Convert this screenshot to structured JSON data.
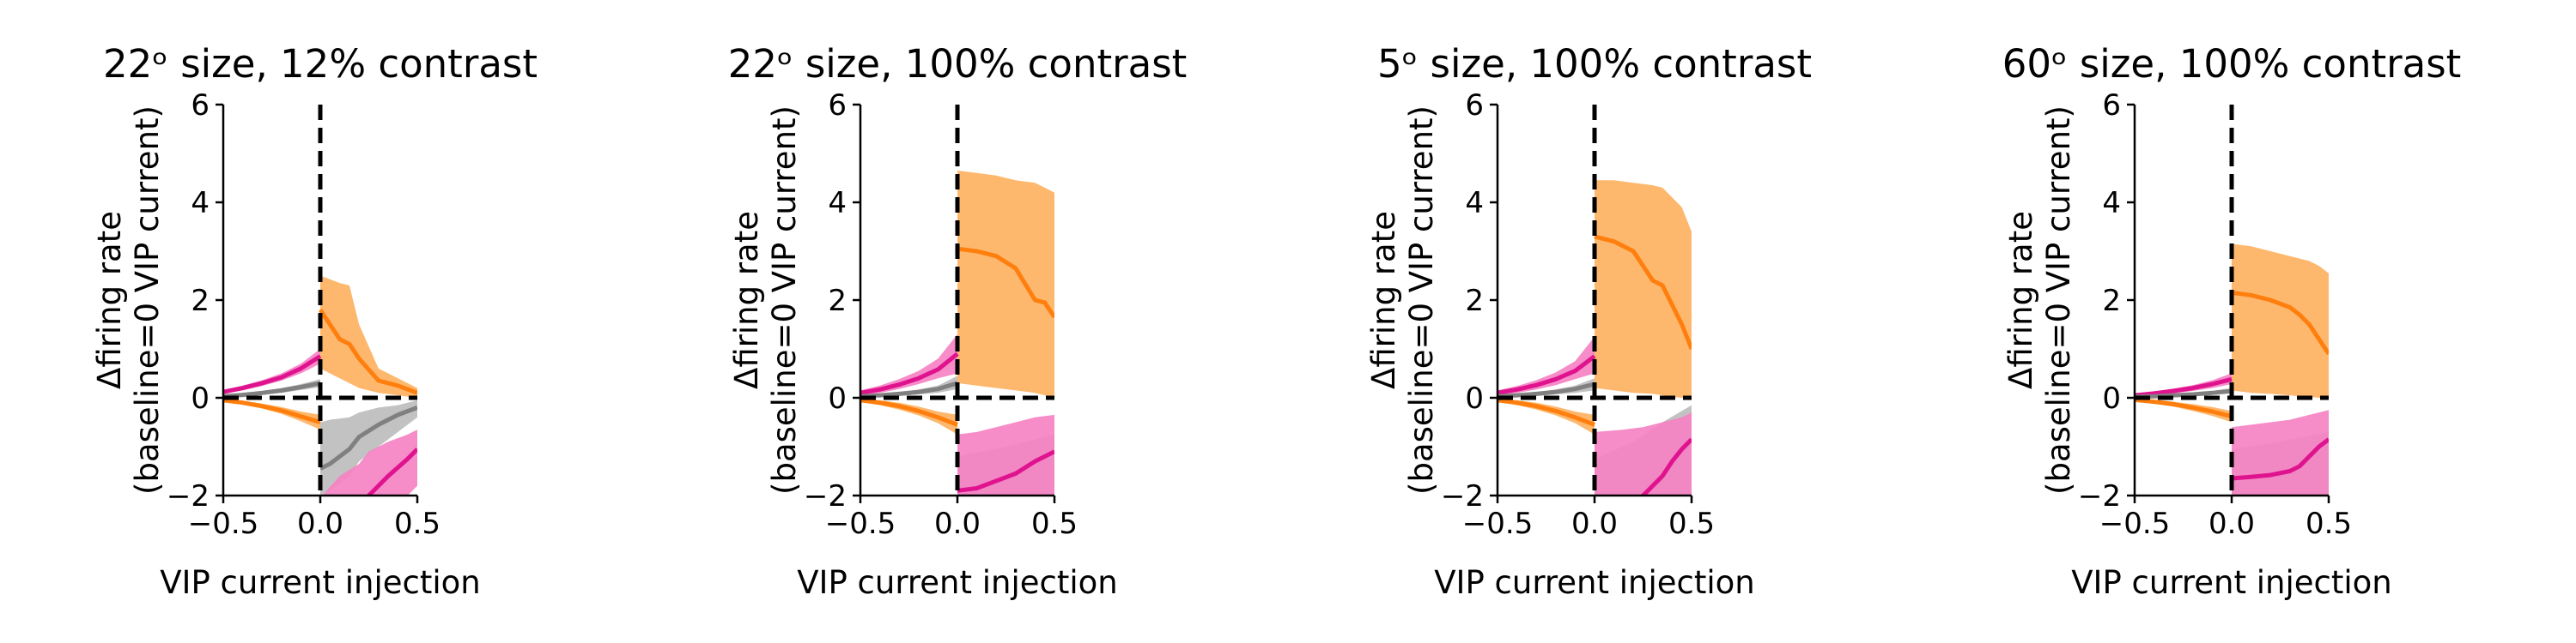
{
  "colors": {
    "orange": "#ff7f0e",
    "orange_band": "#fdb86e",
    "magenta": "#e0138f",
    "magenta_band": "#f582c3",
    "grey": "#808080",
    "grey_band": "#bdbdbd",
    "dashed": "#000000"
  },
  "chart_data": [
    {
      "type": "line",
      "title": "22ᵒ size, 12% contrast",
      "xlabel": "VIP current injection",
      "ylabel_line1": "Δfiring rate",
      "ylabel_line2": "(baseline=0 VIP current)",
      "xlim": [
        -0.5,
        0.5
      ],
      "ylim": [
        -2,
        6
      ],
      "xticks": [
        "−0.5",
        "0.0",
        "0.5"
      ],
      "yticks": [
        "−2",
        "0",
        "2",
        "4",
        "6"
      ],
      "xtick_values": [
        -0.5,
        0,
        0.5
      ],
      "ytick_values": [
        -2,
        0,
        2,
        4,
        6
      ],
      "series": [
        {
          "color": "magenta",
          "x": [
            -0.5,
            -0.4,
            -0.3,
            -0.2,
            -0.1,
            0
          ],
          "y": [
            0.12,
            0.2,
            0.3,
            0.42,
            0.6,
            0.85
          ],
          "lo": [
            0.08,
            0.15,
            0.24,
            0.35,
            0.5,
            0.7
          ],
          "hi": [
            0.16,
            0.25,
            0.36,
            0.5,
            0.7,
            1.0
          ]
        },
        {
          "color": "grey",
          "x": [
            -0.5,
            -0.4,
            -0.3,
            -0.2,
            -0.1,
            0
          ],
          "y": [
            0.03,
            0.06,
            0.1,
            0.15,
            0.22,
            0.3
          ],
          "lo": [
            0.0,
            0.03,
            0.06,
            0.1,
            0.16,
            0.22
          ],
          "hi": [
            0.06,
            0.09,
            0.14,
            0.2,
            0.28,
            0.38
          ]
        },
        {
          "color": "orange",
          "x": [
            -0.5,
            -0.4,
            -0.3,
            -0.2,
            -0.1,
            0
          ],
          "y": [
            -0.05,
            -0.1,
            -0.17,
            -0.26,
            -0.38,
            -0.5
          ],
          "lo": [
            -0.08,
            -0.14,
            -0.22,
            -0.33,
            -0.48,
            -0.65
          ],
          "hi": [
            -0.02,
            -0.06,
            -0.12,
            -0.19,
            -0.28,
            -0.35
          ]
        },
        {
          "color": "orange",
          "x": [
            0,
            0.1,
            0.15,
            0.2,
            0.3,
            0.4,
            0.5
          ],
          "y": [
            1.8,
            1.2,
            1.1,
            0.8,
            0.35,
            0.25,
            0.1
          ],
          "lo": [
            0.6,
            0.4,
            0.3,
            0.2,
            0.1,
            0.05,
            0.0
          ],
          "hi": [
            2.5,
            2.35,
            2.3,
            1.5,
            0.6,
            0.4,
            0.2
          ]
        },
        {
          "color": "grey",
          "x": [
            0,
            0.05,
            0.15,
            0.2,
            0.3,
            0.4,
            0.5
          ],
          "y": [
            -1.45,
            -1.35,
            -1.05,
            -0.8,
            -0.55,
            -0.35,
            -0.2
          ],
          "lo": [
            -2.0,
            -1.9,
            -1.6,
            -1.3,
            -1.0,
            -0.7,
            -0.4
          ],
          "hi": [
            -0.5,
            -0.45,
            -0.4,
            -0.3,
            -0.2,
            -0.15,
            -0.05
          ]
        },
        {
          "color": "magenta",
          "x": [
            0,
            0.1,
            0.2,
            0.25,
            0.35,
            0.45,
            0.5
          ],
          "y": [
            -2.6,
            -2.5,
            -2.3,
            -2.0,
            -1.6,
            -1.25,
            -1.05
          ],
          "lo": [
            -2.8,
            -2.8,
            -2.7,
            -2.6,
            -2.3,
            -2.0,
            -1.8
          ],
          "hi": [
            -2.05,
            -1.6,
            -1.35,
            -1.1,
            -0.9,
            -0.75,
            -0.65
          ]
        }
      ]
    },
    {
      "type": "line",
      "title": "22ᵒ size, 100% contrast",
      "xlabel": "VIP current injection",
      "ylabel_line1": "Δfiring rate",
      "ylabel_line2": "(baseline=0 VIP current)",
      "xlim": [
        -0.5,
        0.5
      ],
      "ylim": [
        -2,
        6
      ],
      "xticks": [
        "−0.5",
        "0.0",
        "0.5"
      ],
      "yticks": [
        "−2",
        "0",
        "2",
        "4",
        "6"
      ],
      "xtick_values": [
        -0.5,
        0,
        0.5
      ],
      "ytick_values": [
        -2,
        0,
        2,
        4,
        6
      ],
      "series": [
        {
          "color": "magenta",
          "x": [
            -0.5,
            -0.4,
            -0.3,
            -0.2,
            -0.1,
            0
          ],
          "y": [
            0.1,
            0.17,
            0.27,
            0.4,
            0.58,
            0.9
          ],
          "lo": [
            0.05,
            0.1,
            0.18,
            0.28,
            0.4,
            0.5
          ],
          "hi": [
            0.15,
            0.25,
            0.38,
            0.55,
            0.8,
            1.3
          ]
        },
        {
          "color": "grey",
          "x": [
            -0.5,
            -0.4,
            -0.3,
            -0.2,
            -0.1,
            0
          ],
          "y": [
            0.03,
            0.05,
            0.08,
            0.12,
            0.18,
            0.3
          ],
          "lo": [
            0.0,
            0.02,
            0.04,
            0.07,
            0.1,
            0.18
          ],
          "hi": [
            0.06,
            0.08,
            0.12,
            0.17,
            0.25,
            0.45
          ]
        },
        {
          "color": "orange",
          "x": [
            -0.5,
            -0.4,
            -0.3,
            -0.2,
            -0.1,
            0
          ],
          "y": [
            -0.05,
            -0.1,
            -0.17,
            -0.27,
            -0.4,
            -0.55
          ],
          "lo": [
            -0.08,
            -0.15,
            -0.24,
            -0.36,
            -0.52,
            -0.75
          ],
          "hi": [
            -0.02,
            -0.05,
            -0.1,
            -0.18,
            -0.28,
            -0.35
          ]
        },
        {
          "color": "orange",
          "x": [
            0,
            0.1,
            0.2,
            0.3,
            0.4,
            0.45,
            0.5
          ],
          "y": [
            3.05,
            3.0,
            2.9,
            2.65,
            2.0,
            1.95,
            1.65
          ],
          "lo": [
            0.3,
            0.25,
            0.2,
            0.15,
            0.1,
            0.05,
            0.0
          ],
          "hi": [
            4.65,
            4.6,
            4.55,
            4.45,
            4.4,
            4.3,
            4.2
          ]
        },
        {
          "color": "grey",
          "x": [
            0,
            0.25,
            0.5
          ],
          "y": [
            -2.5,
            -2.3,
            -2.1
          ],
          "lo": [
            -2.8,
            -2.8,
            -2.8
          ],
          "hi": [
            -1.2,
            -1.0,
            -0.75
          ]
        },
        {
          "color": "magenta",
          "x": [
            0,
            0.1,
            0.2,
            0.3,
            0.4,
            0.5
          ],
          "y": [
            -1.9,
            -1.85,
            -1.7,
            -1.55,
            -1.3,
            -1.1
          ],
          "lo": [
            -2.8,
            -2.8,
            -2.8,
            -2.8,
            -2.8,
            -2.8
          ],
          "hi": [
            -0.75,
            -0.7,
            -0.6,
            -0.5,
            -0.4,
            -0.35
          ]
        }
      ]
    },
    {
      "type": "line",
      "title": "5ᵒ size, 100% contrast",
      "xlabel": "VIP current injection",
      "ylabel_line1": "Δfiring rate",
      "ylabel_line2": "(baseline=0 VIP current)",
      "xlim": [
        -0.5,
        0.5
      ],
      "ylim": [
        -2,
        6
      ],
      "xticks": [
        "−0.5",
        "0.0",
        "0.5"
      ],
      "yticks": [
        "−2",
        "0",
        "2",
        "4",
        "6"
      ],
      "xtick_values": [
        -0.5,
        0,
        0.5
      ],
      "ytick_values": [
        -2,
        0,
        2,
        4,
        6
      ],
      "series": [
        {
          "color": "magenta",
          "x": [
            -0.5,
            -0.4,
            -0.3,
            -0.2,
            -0.1,
            0
          ],
          "y": [
            0.1,
            0.17,
            0.26,
            0.38,
            0.55,
            0.85
          ],
          "lo": [
            0.05,
            0.1,
            0.17,
            0.26,
            0.38,
            0.5
          ],
          "hi": [
            0.15,
            0.24,
            0.36,
            0.52,
            0.75,
            1.25
          ]
        },
        {
          "color": "grey",
          "x": [
            -0.5,
            -0.4,
            -0.3,
            -0.2,
            -0.1,
            0
          ],
          "y": [
            0.03,
            0.05,
            0.08,
            0.12,
            0.18,
            0.28
          ],
          "lo": [
            0.0,
            0.02,
            0.04,
            0.07,
            0.1,
            0.15
          ],
          "hi": [
            0.06,
            0.08,
            0.12,
            0.17,
            0.25,
            0.4
          ]
        },
        {
          "color": "orange",
          "x": [
            -0.5,
            -0.4,
            -0.3,
            -0.2,
            -0.1,
            0
          ],
          "y": [
            -0.05,
            -0.1,
            -0.17,
            -0.27,
            -0.4,
            -0.55
          ],
          "lo": [
            -0.08,
            -0.15,
            -0.24,
            -0.36,
            -0.52,
            -0.75
          ],
          "hi": [
            -0.02,
            -0.05,
            -0.1,
            -0.18,
            -0.28,
            -0.35
          ]
        },
        {
          "color": "orange",
          "x": [
            0,
            0.1,
            0.2,
            0.3,
            0.35,
            0.4,
            0.45,
            0.5
          ],
          "y": [
            3.3,
            3.2,
            3.0,
            2.4,
            2.3,
            1.9,
            1.5,
            1.0
          ],
          "lo": [
            0.2,
            0.15,
            0.1,
            0.08,
            0.05,
            0.02,
            0.0,
            0.0
          ],
          "hi": [
            4.45,
            4.45,
            4.4,
            4.35,
            4.3,
            4.1,
            3.9,
            3.4
          ]
        },
        {
          "color": "grey",
          "x": [
            0,
            0.2,
            0.35,
            0.5
          ],
          "y": [
            -2.6,
            -2.5,
            -2.4,
            -2.3
          ],
          "lo": [
            -2.8,
            -2.8,
            -2.8,
            -2.8
          ],
          "hi": [
            -1.25,
            -0.9,
            -0.5,
            -0.15
          ]
        },
        {
          "color": "magenta",
          "x": [
            0,
            0.15,
            0.25,
            0.3,
            0.35,
            0.4,
            0.45,
            0.5
          ],
          "y": [
            -2.4,
            -2.3,
            -2.0,
            -1.8,
            -1.6,
            -1.3,
            -1.05,
            -0.85
          ],
          "lo": [
            -2.8,
            -2.8,
            -2.8,
            -2.8,
            -2.8,
            -2.8,
            -2.8,
            -2.8
          ],
          "hi": [
            -0.7,
            -0.65,
            -0.6,
            -0.55,
            -0.5,
            -0.45,
            -0.4,
            -0.3
          ]
        }
      ]
    },
    {
      "type": "line",
      "title": "60ᵒ size, 100% contrast",
      "xlabel": "VIP current injection",
      "ylabel_line1": "Δfiring rate",
      "ylabel_line2": "(baseline=0 VIP current)",
      "xlim": [
        -0.5,
        0.5
      ],
      "ylim": [
        -2,
        6
      ],
      "xticks": [
        "−0.5",
        "0.0",
        "0.5"
      ],
      "yticks": [
        "−2",
        "0",
        "2",
        "4",
        "6"
      ],
      "xtick_values": [
        -0.5,
        0,
        0.5
      ],
      "ytick_values": [
        -2,
        0,
        2,
        4,
        6
      ],
      "series": [
        {
          "color": "magenta",
          "x": [
            -0.5,
            -0.4,
            -0.3,
            -0.2,
            -0.1,
            0
          ],
          "y": [
            0.05,
            0.09,
            0.14,
            0.2,
            0.28,
            0.38
          ],
          "lo": [
            0.02,
            0.05,
            0.09,
            0.14,
            0.2,
            0.28
          ],
          "hi": [
            0.08,
            0.13,
            0.19,
            0.26,
            0.36,
            0.5
          ]
        },
        {
          "color": "grey",
          "x": [
            -0.5,
            -0.4,
            -0.3,
            -0.2,
            -0.1,
            0
          ],
          "y": [
            0.02,
            0.03,
            0.05,
            0.07,
            0.1,
            0.14
          ],
          "lo": [
            0.0,
            0.01,
            0.02,
            0.04,
            0.06,
            0.09
          ],
          "hi": [
            0.04,
            0.06,
            0.08,
            0.1,
            0.14,
            0.2
          ]
        },
        {
          "color": "orange",
          "x": [
            -0.5,
            -0.4,
            -0.3,
            -0.2,
            -0.1,
            0
          ],
          "y": [
            -0.04,
            -0.08,
            -0.13,
            -0.2,
            -0.28,
            -0.38
          ],
          "lo": [
            -0.07,
            -0.12,
            -0.18,
            -0.27,
            -0.37,
            -0.5
          ],
          "hi": [
            -0.01,
            -0.04,
            -0.08,
            -0.13,
            -0.19,
            -0.27
          ]
        },
        {
          "color": "orange",
          "x": [
            0,
            0.1,
            0.2,
            0.3,
            0.35,
            0.4,
            0.45,
            0.5
          ],
          "y": [
            2.15,
            2.1,
            2.0,
            1.85,
            1.7,
            1.5,
            1.2,
            0.9
          ],
          "lo": [
            0.15,
            0.1,
            0.08,
            0.05,
            0.03,
            0.02,
            0.0,
            0.0
          ],
          "hi": [
            3.15,
            3.1,
            3.0,
            2.9,
            2.85,
            2.8,
            2.7,
            2.55
          ]
        },
        {
          "color": "grey",
          "x": [
            0,
            0.25,
            0.5
          ],
          "y": [
            -2.6,
            -2.5,
            -2.4
          ],
          "lo": [
            -2.8,
            -2.8,
            -2.8
          ],
          "hi": [
            -1.05,
            -0.9,
            -0.7
          ]
        },
        {
          "color": "magenta",
          "x": [
            0,
            0.1,
            0.2,
            0.3,
            0.35,
            0.4,
            0.45,
            0.5
          ],
          "y": [
            -1.65,
            -1.62,
            -1.58,
            -1.5,
            -1.4,
            -1.2,
            -1.0,
            -0.85
          ],
          "lo": [
            -2.8,
            -2.8,
            -2.8,
            -2.8,
            -2.8,
            -2.8,
            -2.8,
            -2.8
          ],
          "hi": [
            -0.6,
            -0.55,
            -0.5,
            -0.45,
            -0.4,
            -0.35,
            -0.3,
            -0.25
          ]
        }
      ]
    }
  ]
}
